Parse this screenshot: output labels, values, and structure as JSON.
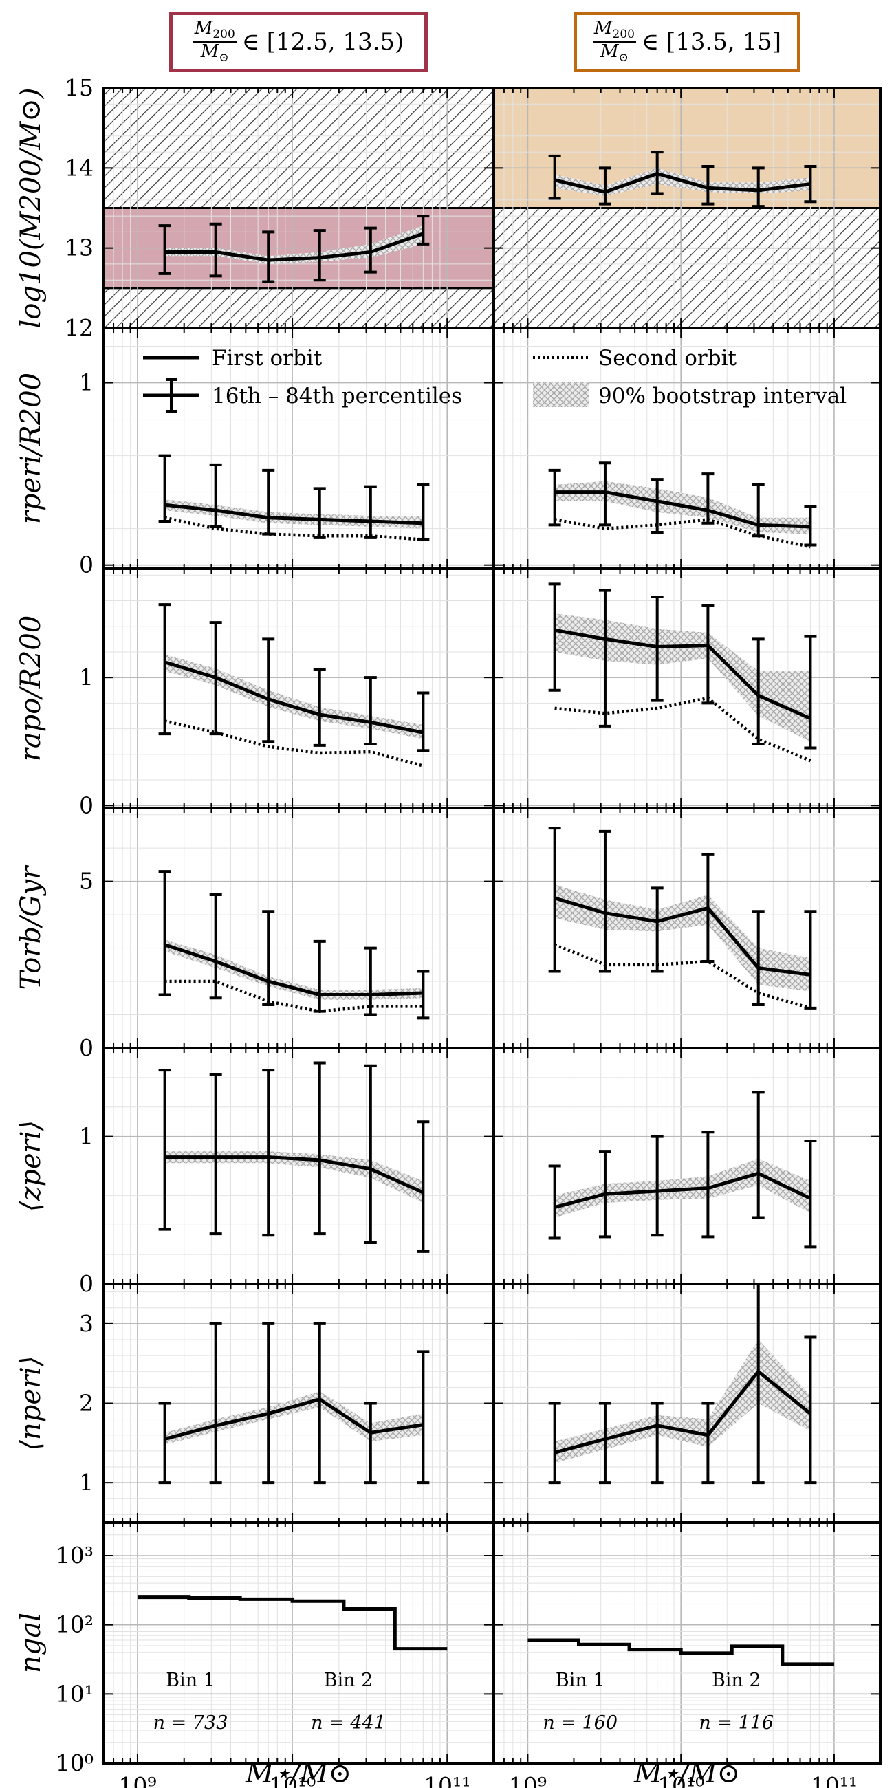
{
  "headers": {
    "left": {
      "frac_num": "M",
      "frac_num_sub": "200",
      "frac_den": "M",
      "frac_den_sub": "⊙",
      "range": "∈ [12.5, 13.5)",
      "color": "#a0334a"
    },
    "right": {
      "frac_num": "M",
      "frac_num_sub": "200",
      "frac_den": "M",
      "frac_den_sub": "⊙",
      "range": "∈ [13.5, 15]",
      "color": "#c06a10"
    }
  },
  "legend": {
    "first_orbit": "First orbit",
    "percentiles": "16th – 84th percentiles",
    "second_orbit": "Second orbit",
    "bootstrap": "90% bootstrap interval"
  },
  "chart_data": {
    "type": "line",
    "x_scale": "log",
    "xlim": [
      600000000.0,
      200000000000.0
    ],
    "x_tick_labels": [
      "10⁹",
      "10¹⁰",
      "10¹¹"
    ],
    "xlabel": "M⋆/M⊙",
    "x": [
      1500000000.0,
      3200000000.0,
      7000000000.0,
      15000000000.0,
      32000000000.0,
      70000000000.0
    ],
    "rows": [
      {
        "key": "mhalo",
        "ylabel": "log10(M200/M⊙)",
        "ylim": [
          12,
          15
        ],
        "y_tick_labels": [
          "12",
          "13",
          "14",
          "15"
        ],
        "y_ticks": [
          12,
          13,
          14,
          15
        ],
        "left": {
          "band_in": [
            12.5,
            13.5
          ],
          "band_color": "#d4a7b0",
          "first": [
            12.95,
            12.95,
            12.85,
            12.88,
            12.95,
            13.18
          ],
          "err_lo": [
            12.68,
            12.65,
            12.58,
            12.6,
            12.7,
            13.05
          ],
          "err_hi": [
            13.28,
            13.3,
            13.2,
            13.22,
            13.25,
            13.4
          ],
          "boot_lo": [
            12.9,
            12.9,
            12.8,
            12.83,
            12.88,
            13.05
          ],
          "boot_hi": [
            13.0,
            13.0,
            12.9,
            12.95,
            13.05,
            13.28
          ]
        },
        "right": {
          "band_in": [
            13.5,
            15
          ],
          "band_color": "#ecd2b0",
          "first": [
            13.85,
            13.7,
            13.93,
            13.75,
            13.72,
            13.8
          ],
          "err_lo": [
            13.62,
            13.55,
            13.68,
            13.55,
            13.52,
            13.58
          ],
          "err_hi": [
            14.15,
            14.0,
            14.2,
            14.02,
            14.0,
            14.02
          ],
          "boot_lo": [
            13.75,
            13.65,
            13.8,
            13.7,
            13.68,
            13.72
          ],
          "boot_hi": [
            13.92,
            13.78,
            14.0,
            13.82,
            13.82,
            13.88
          ]
        }
      },
      {
        "key": "rperi",
        "ylabel": "rperi/R200",
        "ylim": [
          -0.02,
          1.3
        ],
        "y_tick_labels": [
          "0",
          "1"
        ],
        "y_ticks": [
          0,
          1
        ],
        "left": {
          "first": [
            0.33,
            0.3,
            0.26,
            0.25,
            0.24,
            0.23
          ],
          "second": [
            0.26,
            0.2,
            0.17,
            0.16,
            0.16,
            0.14
          ],
          "err_lo": [
            0.24,
            0.21,
            0.17,
            0.15,
            0.15,
            0.14
          ],
          "err_hi": [
            0.6,
            0.55,
            0.52,
            0.42,
            0.43,
            0.44
          ],
          "boot_lo": [
            0.3,
            0.27,
            0.23,
            0.22,
            0.21,
            0.2
          ],
          "boot_hi": [
            0.36,
            0.33,
            0.29,
            0.28,
            0.27,
            0.27
          ]
        },
        "right": {
          "first": [
            0.4,
            0.4,
            0.35,
            0.3,
            0.22,
            0.21
          ],
          "second": [
            0.25,
            0.2,
            0.22,
            0.25,
            0.16,
            0.1
          ],
          "err_lo": [
            0.22,
            0.22,
            0.18,
            0.23,
            0.16,
            0.11
          ],
          "err_hi": [
            0.52,
            0.56,
            0.47,
            0.5,
            0.44,
            0.32
          ],
          "boot_lo": [
            0.35,
            0.35,
            0.29,
            0.26,
            0.18,
            0.17
          ],
          "boot_hi": [
            0.44,
            0.46,
            0.42,
            0.37,
            0.26,
            0.26
          ]
        }
      },
      {
        "key": "rapo",
        "ylabel": "rapo/R200",
        "ylim": [
          -0.02,
          1.85
        ],
        "y_tick_labels": [
          "0",
          "1"
        ],
        "y_ticks": [
          0,
          1
        ],
        "left": {
          "first": [
            1.12,
            1.0,
            0.83,
            0.71,
            0.65,
            0.57
          ],
          "second": [
            0.66,
            0.57,
            0.46,
            0.41,
            0.42,
            0.31
          ],
          "err_lo": [
            0.56,
            0.56,
            0.5,
            0.47,
            0.48,
            0.43
          ],
          "err_hi": [
            1.57,
            1.43,
            1.3,
            1.06,
            1.0,
            0.88
          ],
          "boot_lo": [
            1.05,
            0.94,
            0.77,
            0.66,
            0.6,
            0.52
          ],
          "boot_hi": [
            1.18,
            1.07,
            0.9,
            0.77,
            0.7,
            0.63
          ]
        },
        "right": {
          "first": [
            1.37,
            1.3,
            1.24,
            1.25,
            0.86,
            0.68
          ],
          "second": [
            0.76,
            0.72,
            0.76,
            0.84,
            0.52,
            0.35
          ],
          "err_lo": [
            0.9,
            0.62,
            0.82,
            0.8,
            0.48,
            0.45
          ],
          "err_hi": [
            1.73,
            1.68,
            1.63,
            1.56,
            1.3,
            1.32
          ],
          "boot_lo": [
            1.2,
            1.13,
            1.1,
            1.15,
            0.7,
            0.5
          ],
          "boot_hi": [
            1.5,
            1.45,
            1.38,
            1.35,
            1.05,
            1.05
          ]
        }
      },
      {
        "key": "torb",
        "ylabel": "Torb/Gyr",
        "ylim": [
          0,
          7.2
        ],
        "y_tick_labels": [
          "0",
          "5"
        ],
        "y_ticks": [
          0,
          5
        ],
        "left": {
          "first": [
            3.1,
            2.6,
            2.0,
            1.6,
            1.6,
            1.65
          ],
          "second": [
            2.0,
            2.0,
            1.4,
            1.1,
            1.25,
            1.25
          ],
          "err_lo": [
            1.6,
            1.5,
            1.3,
            1.1,
            1.0,
            0.9
          ],
          "err_hi": [
            5.3,
            4.6,
            4.1,
            3.2,
            3.0,
            2.3
          ],
          "boot_lo": [
            2.9,
            2.4,
            1.85,
            1.45,
            1.45,
            1.5
          ],
          "boot_hi": [
            3.25,
            2.8,
            2.15,
            1.75,
            1.75,
            1.8
          ]
        },
        "right": {
          "first": [
            4.5,
            4.05,
            3.8,
            4.2,
            2.4,
            2.2
          ],
          "second": [
            3.1,
            2.5,
            2.5,
            2.6,
            1.65,
            1.2
          ],
          "err_lo": [
            2.3,
            2.3,
            2.3,
            2.6,
            1.3,
            1.2
          ],
          "err_hi": [
            6.6,
            6.5,
            4.8,
            5.8,
            4.1,
            4.1
          ],
          "boot_lo": [
            3.9,
            3.55,
            3.5,
            3.7,
            1.9,
            1.7
          ],
          "boot_hi": [
            4.9,
            4.45,
            4.15,
            4.6,
            3.0,
            2.7
          ]
        }
      },
      {
        "key": "zperi",
        "ylabel": "⟨zperi⟩",
        "ylim": [
          0,
          1.6
        ],
        "y_tick_labels": [
          "0",
          "1"
        ],
        "y_ticks": [
          0,
          1
        ],
        "left": {
          "first": [
            0.86,
            0.86,
            0.86,
            0.84,
            0.78,
            0.62
          ],
          "err_lo": [
            0.37,
            0.34,
            0.33,
            0.34,
            0.28,
            0.22
          ],
          "err_hi": [
            1.45,
            1.42,
            1.45,
            1.5,
            1.48,
            1.1
          ],
          "boot_lo": [
            0.82,
            0.82,
            0.82,
            0.79,
            0.72,
            0.55
          ],
          "boot_hi": [
            0.9,
            0.9,
            0.9,
            0.88,
            0.84,
            0.7
          ]
        },
        "right": {
          "first": [
            0.52,
            0.61,
            0.63,
            0.65,
            0.75,
            0.58
          ],
          "err_lo": [
            0.31,
            0.32,
            0.33,
            0.32,
            0.45,
            0.25
          ],
          "err_hi": [
            0.8,
            0.9,
            1.0,
            1.03,
            1.3,
            0.97
          ],
          "boot_lo": [
            0.45,
            0.55,
            0.57,
            0.58,
            0.67,
            0.48
          ],
          "boot_hi": [
            0.6,
            0.68,
            0.7,
            0.73,
            0.85,
            0.7
          ]
        }
      },
      {
        "key": "nperi",
        "ylabel": "⟨nperi⟩",
        "ylim": [
          0.5,
          3.5
        ],
        "y_tick_labels": [
          "1",
          "2",
          "3"
        ],
        "y_ticks": [
          1,
          2,
          3
        ],
        "left": {
          "first": [
            1.55,
            1.72,
            1.87,
            2.05,
            1.63,
            1.73
          ],
          "err_lo": [
            1.0,
            1.0,
            1.0,
            1.0,
            1.0,
            1.0
          ],
          "err_hi": [
            2.0,
            3.0,
            3.0,
            3.0,
            2.0,
            2.65
          ],
          "boot_lo": [
            1.48,
            1.64,
            1.8,
            1.95,
            1.52,
            1.6
          ],
          "boot_hi": [
            1.63,
            1.8,
            1.95,
            2.15,
            1.75,
            1.87
          ]
        },
        "right": {
          "first": [
            1.38,
            1.55,
            1.72,
            1.6,
            2.4,
            1.87
          ],
          "err_lo": [
            1.0,
            1.0,
            1.0,
            1.0,
            1.0,
            1.0
          ],
          "err_hi": [
            2.0,
            2.0,
            2.0,
            2.0,
            3.5,
            2.83
          ],
          "boot_lo": [
            1.25,
            1.42,
            1.6,
            1.45,
            2.0,
            1.65
          ],
          "boot_hi": [
            1.52,
            1.68,
            1.85,
            1.8,
            2.8,
            2.1
          ]
        }
      },
      {
        "key": "ngal",
        "ylabel": "ngal",
        "y_scale": "log",
        "ylim": [
          1,
          3000
        ],
        "y_tick_labels": [
          "10⁰",
          "10¹",
          "10²",
          "10³"
        ],
        "y_ticks": [
          1,
          10,
          100,
          1000
        ],
        "left": {
          "steps": [
            [
              1000000000.0,
              250
            ],
            [
              2150000000.0,
              245
            ],
            [
              4600000000.0,
              235
            ],
            [
              10000000000.0,
              220
            ],
            [
              21500000000.0,
              170
            ],
            [
              46000000000.0,
              45
            ],
            [
              100000000000.0,
              45
            ]
          ],
          "bins": [
            {
              "name": "Bin 1",
              "n": "n = 733",
              "x": 2200000000.0
            },
            {
              "name": "Bin 2",
              "n": "n = 441",
              "x": 23000000000.0
            }
          ]
        },
        "right": {
          "steps": [
            [
              1000000000.0,
              60
            ],
            [
              2150000000.0,
              52
            ],
            [
              4600000000.0,
              44
            ],
            [
              10000000000.0,
              39
            ],
            [
              21500000000.0,
              49
            ],
            [
              46000000000.0,
              27
            ],
            [
              100000000000.0,
              27
            ]
          ],
          "bins": [
            {
              "name": "Bin 1",
              "n": "n = 160",
              "x": 2200000000.0
            },
            {
              "name": "Bin 2",
              "n": "n = 116",
              "x": 23000000000.0
            }
          ]
        }
      }
    ]
  }
}
